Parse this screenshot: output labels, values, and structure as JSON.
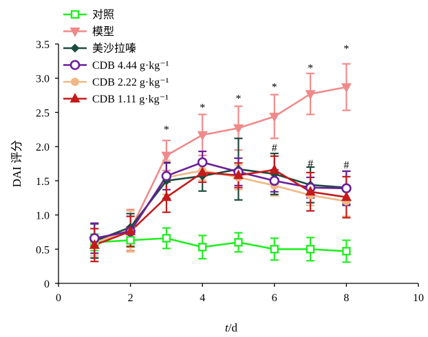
{
  "chart_data": {
    "type": "line",
    "title": "",
    "xlabel": "t/d",
    "xlabel_parts": {
      "italic": "t",
      "rest": "/d"
    },
    "ylabel": "DAI 评分",
    "xlim": [
      0,
      10
    ],
    "ylim": [
      0,
      3.5
    ],
    "x_ticks": [
      "0",
      "2",
      "4",
      "6",
      "8",
      "10"
    ],
    "y_ticks": [
      "0",
      "0.5",
      "1.0",
      "1.5",
      "2.0",
      "2.5",
      "3.0",
      "3.5"
    ],
    "grid": false,
    "legend_position": "top-left",
    "x": [
      1,
      2,
      3,
      4,
      5,
      6,
      7,
      8
    ],
    "series": [
      {
        "name": "对照",
        "color": "#22ee22",
        "marker": "square-open",
        "values": [
          0.6,
          0.63,
          0.66,
          0.53,
          0.6,
          0.5,
          0.5,
          0.47
        ],
        "errors": [
          0.12,
          0.1,
          0.15,
          0.17,
          0.14,
          0.16,
          0.17,
          0.16
        ]
      },
      {
        "name": "模型",
        "color": "#f08a8a",
        "marker": "triangle-down",
        "values": [
          0.62,
          0.78,
          1.87,
          2.17,
          2.27,
          2.44,
          2.77,
          2.87
        ],
        "errors": [
          0.25,
          0.3,
          0.22,
          0.3,
          0.32,
          0.32,
          0.3,
          0.34
        ]
      },
      {
        "name": "美沙拉嗪",
        "color": "#1d4a3e",
        "marker": "diamond",
        "values": [
          0.62,
          0.82,
          1.5,
          1.57,
          1.67,
          1.6,
          1.44,
          1.4
        ],
        "errors": [
          0.25,
          0.2,
          0.26,
          0.22,
          0.45,
          0.3,
          0.26,
          0.24
        ]
      },
      {
        "name": "CDB 4.44 g·kg⁻¹",
        "color": "#6a1f9a",
        "marker": "circle-open",
        "values": [
          0.66,
          0.76,
          1.57,
          1.77,
          1.63,
          1.5,
          1.4,
          1.39
        ],
        "errors": [
          0.22,
          0.22,
          0.2,
          0.16,
          0.2,
          0.16,
          0.15,
          0.25
        ]
      },
      {
        "name": "CDB 2.22 g·kg⁻¹",
        "color": "#f0b885",
        "marker": "circle-filled",
        "values": [
          0.6,
          0.76,
          1.55,
          1.65,
          1.55,
          1.43,
          1.29,
          1.2
        ],
        "errors": [
          0.2,
          0.3,
          0.25,
          0.14,
          0.18,
          0.15,
          0.15,
          0.22
        ]
      },
      {
        "name": "CDB 1.11 g·kg⁻¹",
        "color": "#c41a1a",
        "marker": "triangle-up",
        "values": [
          0.56,
          0.76,
          1.26,
          1.62,
          1.58,
          1.66,
          1.34,
          1.26
        ],
        "errors": [
          0.24,
          0.22,
          0.22,
          0.14,
          0.18,
          0.2,
          0.28,
          0.3
        ]
      }
    ],
    "annotations": [
      {
        "x": 3,
        "y": 2.2,
        "text": "*"
      },
      {
        "x": 4,
        "y": 2.52,
        "text": "*"
      },
      {
        "x": 5,
        "y": 2.65,
        "text": "*"
      },
      {
        "x": 6,
        "y": 2.82,
        "text": "*"
      },
      {
        "x": 7,
        "y": 3.1,
        "text": "*"
      },
      {
        "x": 8,
        "y": 3.38,
        "text": "*"
      },
      {
        "x": 6,
        "y": 1.93,
        "text": "#"
      },
      {
        "x": 7,
        "y": 1.7,
        "text": "#"
      },
      {
        "x": 8,
        "y": 1.68,
        "text": "#"
      }
    ]
  }
}
